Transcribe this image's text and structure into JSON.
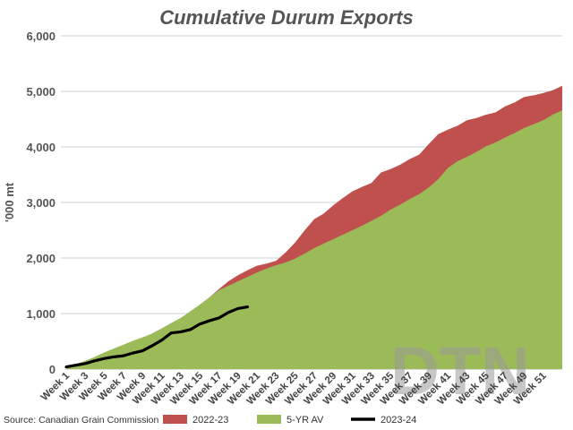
{
  "chart_data": {
    "type": "area",
    "title": "Cumulative Durum Exports",
    "ylabel": "'000 mt",
    "xlabel": "",
    "ylim": [
      0,
      6000
    ],
    "yticks": [
      0,
      1000,
      2000,
      3000,
      4000,
      5000,
      6000
    ],
    "ytick_labels": [
      "0",
      "1,000",
      "2,000",
      "3,000",
      "4,000",
      "5,000",
      "6,000"
    ],
    "xtick_labels": [
      "Week 1",
      "Week 3",
      "Week 5",
      "Week 7",
      "Week 9",
      "Week 11",
      "Week 13",
      "Week 15",
      "Week 17",
      "Week 19",
      "Week 21",
      "Week 23",
      "Week 25",
      "Week 27",
      "Week 29",
      "Week 31",
      "Week 33",
      "Week 35",
      "Week 37",
      "Week 39",
      "Week 41",
      "Week 43",
      "Week 45",
      "Week 47",
      "Week 49",
      "Week 51"
    ],
    "xtick_weeks": [
      1,
      3,
      5,
      7,
      9,
      11,
      13,
      15,
      17,
      19,
      21,
      23,
      25,
      27,
      29,
      31,
      33,
      35,
      37,
      39,
      41,
      43,
      45,
      47,
      49,
      51
    ],
    "x_range": [
      1,
      53
    ],
    "grid": true,
    "legend_position": "bottom",
    "series": [
      {
        "name": "2022-23",
        "kind": "area",
        "color": "#c0504d",
        "weeks": [
          1,
          2,
          3,
          4,
          5,
          6,
          7,
          8,
          9,
          10,
          11,
          12,
          13,
          14,
          15,
          16,
          17,
          18,
          19,
          20,
          21,
          22,
          23,
          24,
          25,
          26,
          27,
          28,
          29,
          30,
          31,
          32,
          33,
          34,
          35,
          36,
          37,
          38,
          39,
          40,
          41,
          42,
          43,
          44,
          45,
          46,
          47,
          48,
          49,
          50,
          51,
          52,
          53
        ],
        "values": [
          40,
          80,
          140,
          200,
          280,
          350,
          420,
          490,
          560,
          640,
          730,
          820,
          920,
          1030,
          1160,
          1290,
          1440,
          1580,
          1690,
          1780,
          1860,
          1900,
          1950,
          2100,
          2280,
          2500,
          2700,
          2800,
          2950,
          3080,
          3200,
          3280,
          3350,
          3540,
          3600,
          3680,
          3780,
          3860,
          4050,
          4230,
          4310,
          4380,
          4480,
          4520,
          4580,
          4620,
          4730,
          4800,
          4900,
          4930,
          4970,
          5020,
          5100
        ]
      },
      {
        "name": "5-YR AV",
        "kind": "area",
        "color": "#9bbb59",
        "weeks": [
          1,
          2,
          3,
          4,
          5,
          6,
          7,
          8,
          9,
          10,
          11,
          12,
          13,
          14,
          15,
          16,
          17,
          18,
          19,
          20,
          21,
          22,
          23,
          24,
          25,
          26,
          27,
          28,
          29,
          30,
          31,
          32,
          33,
          34,
          35,
          36,
          37,
          38,
          39,
          40,
          41,
          42,
          43,
          44,
          45,
          46,
          47,
          48,
          49,
          50,
          51,
          52,
          53
        ],
        "values": [
          40,
          90,
          150,
          220,
          300,
          370,
          440,
          510,
          570,
          640,
          730,
          830,
          920,
          1040,
          1160,
          1290,
          1420,
          1500,
          1580,
          1660,
          1740,
          1810,
          1870,
          1920,
          1990,
          2080,
          2180,
          2260,
          2340,
          2420,
          2500,
          2580,
          2670,
          2760,
          2870,
          2960,
          3060,
          3150,
          3270,
          3420,
          3620,
          3740,
          3820,
          3910,
          4010,
          4080,
          4170,
          4250,
          4340,
          4410,
          4480,
          4580,
          4660
        ]
      },
      {
        "name": "2023-24",
        "kind": "line",
        "color": "#000000",
        "weeks": [
          1,
          2,
          3,
          4,
          5,
          6,
          7,
          8,
          9,
          10,
          11,
          12,
          13,
          14,
          15,
          16,
          17,
          18,
          19,
          20
        ],
        "values": [
          40,
          70,
          100,
          150,
          190,
          220,
          240,
          290,
          330,
          420,
          520,
          650,
          670,
          710,
          810,
          870,
          920,
          1020,
          1090,
          1120
        ]
      }
    ],
    "source": "Source: Canadian Grain Commission",
    "watermark": "DTN"
  }
}
